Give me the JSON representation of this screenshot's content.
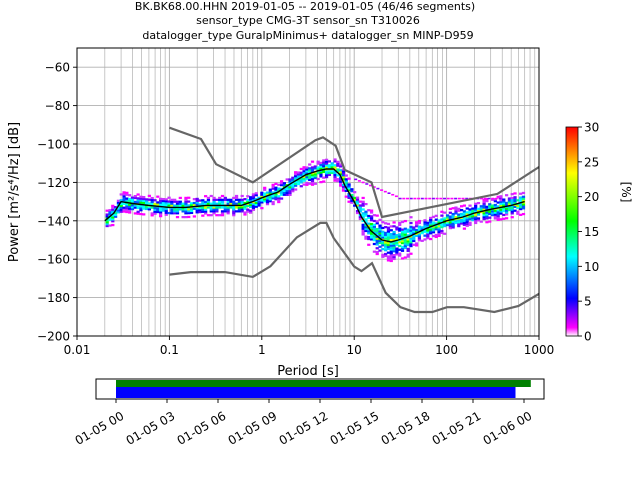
{
  "title_lines": [
    "BK.BK68.00.HHN   2019-01-05 -- 2019-01-05  (46/46 segments)",
    "sensor_type CMG-3T sensor_sn T310026",
    "datalogger_type GuralpMinimus+ datalogger_sn MINP-D959"
  ],
  "chart_data": [
    {
      "type": "heatmap",
      "xlabel": "Period [s]",
      "ylabel": "Power [m²/s⁴/Hz] [dB]",
      "xscale": "log",
      "xlim": [
        0.01,
        1000
      ],
      "ylim": [
        -200,
        -50
      ],
      "x_ticks": [
        0.01,
        0.1,
        1,
        10,
        100,
        1000
      ],
      "x_tick_labels": [
        "0.01",
        "0.1",
        "1",
        "10",
        "100",
        "1000"
      ],
      "y_ticks": [
        -200,
        -180,
        -160,
        -140,
        -120,
        -100,
        -80,
        -60
      ],
      "grid": true,
      "colorbar": {
        "label": "[%]",
        "range": [
          0,
          30
        ],
        "ticks": [
          0,
          5,
          10,
          15,
          20,
          25,
          30
        ],
        "colors": [
          "#ffffff",
          "#ff00ff",
          "#0000ff",
          "#00ffff",
          "#00ff00",
          "#ffff00",
          "#ff0000"
        ]
      },
      "mean_curve": {
        "period": [
          0.02,
          0.025,
          0.03,
          0.04,
          0.06,
          0.1,
          0.15,
          0.25,
          0.4,
          0.6,
          0.8,
          1.0,
          1.5,
          2,
          3,
          4,
          5,
          6,
          7,
          8,
          10,
          12,
          15,
          20,
          25,
          30,
          40,
          60,
          100,
          150,
          200,
          300,
          500,
          700
        ],
        "db": [
          -140,
          -136,
          -130,
          -131,
          -132,
          -133,
          -133,
          -132,
          -132,
          -132,
          -130,
          -128,
          -125,
          -121,
          -116,
          -114,
          -113,
          -113,
          -116,
          -122,
          -130,
          -138,
          -145,
          -150,
          -151,
          -150,
          -148,
          -144,
          -140,
          -138,
          -136,
          -134,
          -132,
          -130
        ]
      },
      "nhnm": {
        "period": [
          0.1,
          0.22,
          0.32,
          0.8,
          3.8,
          4.6,
          6.3,
          7.9,
          15.4,
          20,
          354.8,
          1000
        ],
        "db": [
          -91.5,
          -97.4,
          -110.5,
          -120,
          -98,
          -96.5,
          -101,
          -113.5,
          -120,
          -138,
          -126,
          -112
        ]
      },
      "nlnm": {
        "period": [
          0.1,
          0.17,
          0.4,
          0.8,
          1.24,
          2.4,
          4.3,
          5,
          6,
          10,
          12,
          15.6,
          21.9,
          31.6,
          45,
          70,
          101,
          154,
          328,
          600,
          1000
        ],
        "db": [
          -168,
          -166.7,
          -166.7,
          -169.2,
          -163.7,
          -148.6,
          -141.1,
          -141.1,
          -149,
          -163.8,
          -166.2,
          -162.1,
          -177.5,
          -185,
          -187.5,
          -187.5,
          -185,
          -185,
          -187.5,
          -184.4,
          -178
        ]
      }
    },
    {
      "type": "bar",
      "xlim": [
        "2019-01-05 00:00",
        "2019-01-06 00:00"
      ],
      "x_tick_labels": [
        "01-05 00",
        "01-05 03",
        "01-05 06",
        "01-05 09",
        "01-05 12",
        "01-05 15",
        "01-05 18",
        "01-05 21",
        "01-06 00"
      ],
      "series": [
        {
          "color": "#008000",
          "start_hour": 0.0,
          "end_hour": 24.4
        },
        {
          "color": "#0000ff",
          "start_hour": 0.0,
          "end_hour": 23.5
        }
      ]
    }
  ]
}
